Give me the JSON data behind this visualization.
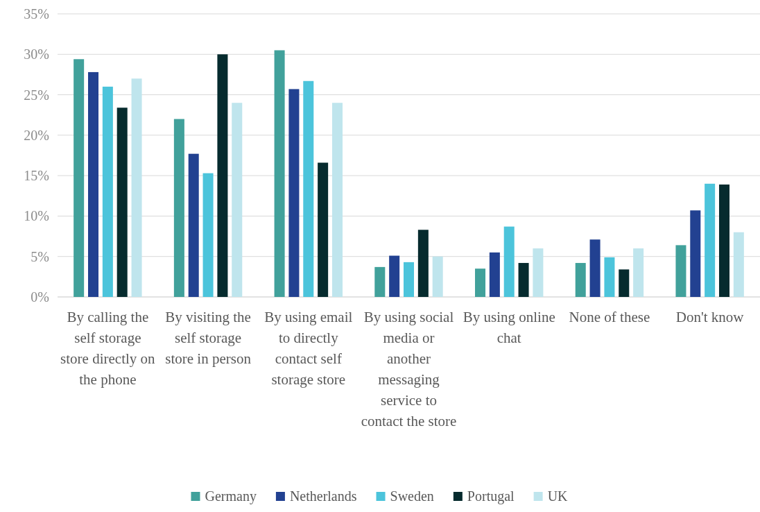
{
  "chart_data": {
    "type": "bar",
    "categories": [
      "By calling the self storage store directly on the phone",
      "By visiting the self storage store in person",
      "By using email to directly contact self storage store",
      "By using social media or another messaging service to contact the store",
      "By using online chat",
      "None of these",
      "Don't know"
    ],
    "series": [
      {
        "name": "Germany",
        "color": "#41a19b",
        "values": [
          29.4,
          22.0,
          30.5,
          3.7,
          3.5,
          4.2,
          6.4
        ]
      },
      {
        "name": "Netherlands",
        "color": "#224191",
        "values": [
          27.8,
          17.7,
          25.7,
          5.1,
          5.5,
          7.1,
          10.7
        ]
      },
      {
        "name": "Sweden",
        "color": "#4cc4db",
        "values": [
          26.0,
          15.3,
          26.7,
          4.3,
          8.7,
          4.9,
          14.0
        ]
      },
      {
        "name": "Portugal",
        "color": "#062b2e",
        "values": [
          23.4,
          30.0,
          16.6,
          8.3,
          4.2,
          3.4,
          13.9
        ]
      },
      {
        "name": "UK",
        "color": "#bfe5ed",
        "values": [
          27.0,
          24.0,
          24.0,
          5.0,
          6.0,
          6.0,
          8.0
        ]
      }
    ],
    "ylim": [
      0,
      35
    ],
    "yticks": [
      {
        "value": 0,
        "label": "0%"
      },
      {
        "value": 5,
        "label": "5%"
      },
      {
        "value": 10,
        "label": "10%"
      },
      {
        "value": 15,
        "label": "15%"
      },
      {
        "value": 20,
        "label": "20%"
      },
      {
        "value": 25,
        "label": "25%"
      },
      {
        "value": 30,
        "label": "30%"
      },
      {
        "value": 35,
        "label": "35%"
      }
    ],
    "grid": "y",
    "legend": "bottom"
  }
}
